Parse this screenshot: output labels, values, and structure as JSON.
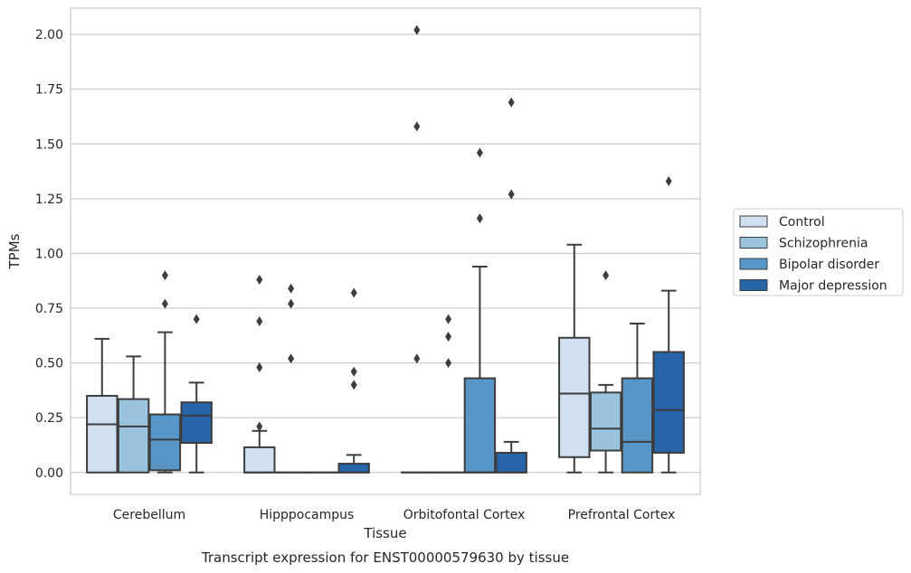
{
  "chart_data": {
    "type": "boxplot",
    "title": "Transcript expression for ENST00000579630 by tissue",
    "xlabel": "Tissue",
    "ylabel": "TPMs",
    "ylim": [
      -0.1,
      2.12
    ],
    "yticks": [
      "0.00",
      "0.25",
      "0.50",
      "0.75",
      "1.00",
      "1.25",
      "1.50",
      "1.75",
      "2.00"
    ],
    "ytick_values": [
      0,
      0.25,
      0.5,
      0.75,
      1.0,
      1.25,
      1.5,
      1.75,
      2.0
    ],
    "categories": [
      "Cerebellum",
      "Hipppocampus",
      "Orbitofontal Cortex",
      "Prefrontal Cortex"
    ],
    "grid": "horizontal",
    "legend_position": "right",
    "series": [
      {
        "name": "Control",
        "color": "#d0e0f0",
        "boxes": [
          {
            "whislo": 0,
            "q1": 0,
            "med": 0.22,
            "q3": 0.35,
            "whishi": 0.61,
            "fliers": []
          },
          {
            "whislo": 0,
            "q1": 0,
            "med": 0,
            "q3": 0.115,
            "whishi": 0.19,
            "fliers": [
              0.21,
              0.48,
              0.69,
              0.88
            ]
          },
          {
            "whislo": 0,
            "q1": 0,
            "med": 0,
            "q3": 0,
            "whishi": 0,
            "fliers": [
              0.52,
              1.58,
              2.02
            ]
          },
          {
            "whislo": 0,
            "q1": 0.07,
            "med": 0.36,
            "q3": 0.615,
            "whishi": 1.04,
            "fliers": []
          }
        ]
      },
      {
        "name": "Schizophrenia",
        "color": "#9ac4de",
        "boxes": [
          {
            "whislo": 0,
            "q1": 0,
            "med": 0.21,
            "q3": 0.335,
            "whishi": 0.53,
            "fliers": []
          },
          {
            "whislo": 0,
            "q1": 0,
            "med": 0,
            "q3": 0,
            "whishi": 0,
            "fliers": [
              0.52,
              0.77,
              0.84
            ]
          },
          {
            "whislo": 0,
            "q1": 0,
            "med": 0,
            "q3": 0,
            "whishi": 0,
            "fliers": [
              0.5,
              0.62,
              0.7
            ]
          },
          {
            "whislo": 0,
            "q1": 0.1,
            "med": 0.2,
            "q3": 0.365,
            "whishi": 0.4,
            "fliers": [
              0.9
            ]
          }
        ]
      },
      {
        "name": "Bipolar disorder",
        "color": "#5796c6",
        "boxes": [
          {
            "whislo": 0,
            "q1": 0.01,
            "med": 0.15,
            "q3": 0.265,
            "whishi": 0.64,
            "fliers": [
              0.77,
              0.9
            ]
          },
          {
            "whislo": 0,
            "q1": 0,
            "med": 0,
            "q3": 0,
            "whishi": 0,
            "fliers": []
          },
          {
            "whislo": 0,
            "q1": 0,
            "med": 0,
            "q3": 0.43,
            "whishi": 0.94,
            "fliers": [
              1.16,
              1.46
            ]
          },
          {
            "whislo": 0,
            "q1": 0,
            "med": 0.14,
            "q3": 0.43,
            "whishi": 0.68,
            "fliers": []
          }
        ]
      },
      {
        "name": "Major depression",
        "color": "#2565a8",
        "boxes": [
          {
            "whislo": 0,
            "q1": 0.135,
            "med": 0.26,
            "q3": 0.32,
            "whishi": 0.41,
            "fliers": [
              0.7
            ]
          },
          {
            "whislo": 0,
            "q1": 0,
            "med": 0,
            "q3": 0.04,
            "whishi": 0.08,
            "fliers": [
              0.4,
              0.46,
              0.82
            ]
          },
          {
            "whislo": 0,
            "q1": 0,
            "med": 0,
            "q3": 0.09,
            "whishi": 0.14,
            "fliers": [
              1.27,
              1.69
            ]
          },
          {
            "whislo": 0,
            "q1": 0.09,
            "med": 0.285,
            "q3": 0.55,
            "whishi": 0.83,
            "fliers": [
              1.33
            ]
          }
        ]
      }
    ]
  }
}
